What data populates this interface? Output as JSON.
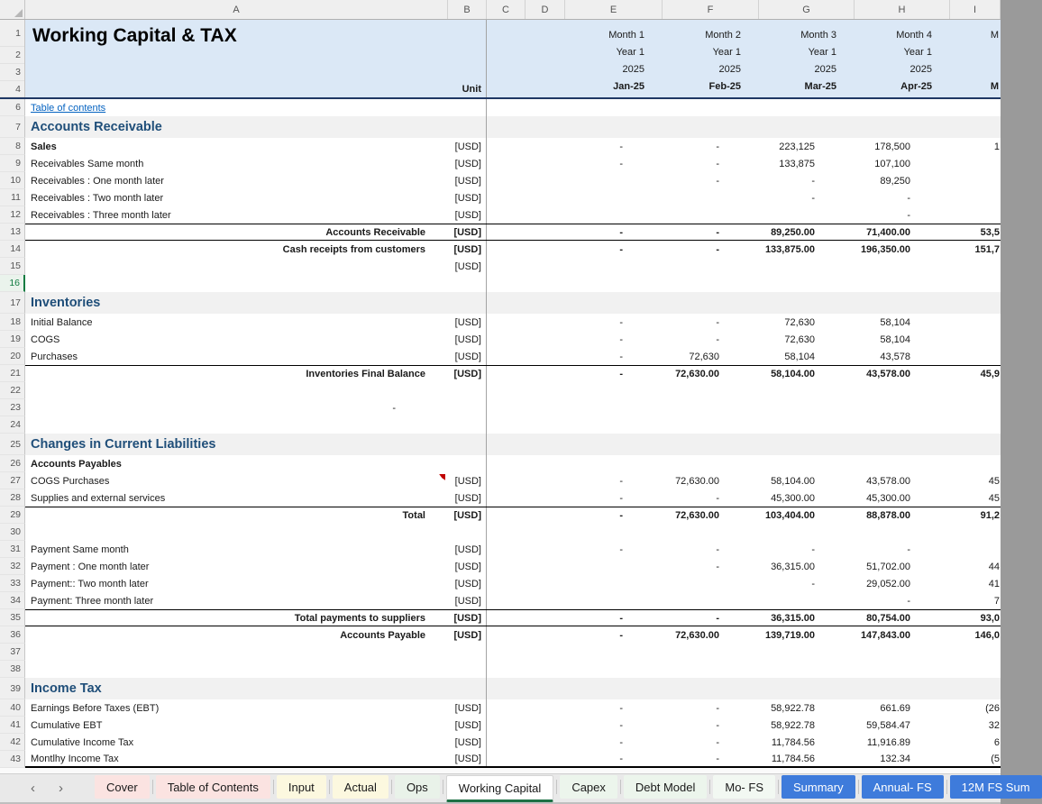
{
  "columns": [
    "A",
    "B",
    "C",
    "D",
    "E",
    "F",
    "G",
    "H",
    "I"
  ],
  "header": {
    "title": "Working Capital & TAX",
    "unit": "Unit",
    "months": [
      {
        "month": "Month 1",
        "year": "Year 1",
        "yr": "2025",
        "code": "Jan-25"
      },
      {
        "month": "Month 2",
        "year": "Year 1",
        "yr": "2025",
        "code": "Feb-25"
      },
      {
        "month": "Month 3",
        "year": "Year 1",
        "yr": "2025",
        "code": "Mar-25"
      },
      {
        "month": "Month 4",
        "year": "Year 1",
        "yr": "2025",
        "code": "Apr-25"
      },
      {
        "month": "M",
        "year": "",
        "yr": "",
        "code": "M"
      }
    ]
  },
  "rows": [
    {
      "n": "6",
      "k": "link",
      "l": "Table of contents"
    },
    {
      "n": "7",
      "k": "sec",
      "l": "Accounts Receivable"
    },
    {
      "n": "8",
      "k": "item",
      "l": "Sales",
      "lb": true,
      "u": "[USD]",
      "v": [
        "-",
        "-",
        "223,125",
        "178,500",
        "1"
      ]
    },
    {
      "n": "9",
      "k": "item",
      "l": "Receivables Same month",
      "u": "[USD]",
      "v": [
        "-",
        "-",
        "133,875",
        "107,100",
        ""
      ]
    },
    {
      "n": "10",
      "k": "item",
      "l": "Receivables : One month later",
      "u": "[USD]",
      "v": [
        "",
        "-",
        "-",
        "89,250",
        ""
      ]
    },
    {
      "n": "11",
      "k": "item",
      "l": "Receivables : Two month later",
      "u": "[USD]",
      "v": [
        "",
        "",
        "-",
        "-",
        ""
      ]
    },
    {
      "n": "12",
      "k": "item",
      "l": "Receivables : Three month later",
      "u": "[USD]",
      "v": [
        "",
        "",
        "",
        "-",
        ""
      ]
    },
    {
      "n": "13",
      "k": "tot",
      "l": "Accounts Receivable",
      "u": "[USD]",
      "v": [
        "-",
        "-",
        "89,250.00",
        "71,400.00",
        "53,5"
      ],
      "border": "tb"
    },
    {
      "n": "14",
      "k": "tot",
      "l": "Cash receipts from customers",
      "u": "[USD]",
      "v": [
        "-",
        "-",
        "133,875.00",
        "196,350.00",
        "151,7"
      ]
    },
    {
      "n": "15",
      "k": "unit",
      "u": "[USD]"
    },
    {
      "n": "16",
      "k": "blank",
      "sel": true
    },
    {
      "n": "17",
      "k": "sec",
      "l": "Inventories"
    },
    {
      "n": "18",
      "k": "item",
      "l": "Initial Balance",
      "u": "[USD]",
      "v": [
        "-",
        "-",
        "72,630",
        "58,104",
        ""
      ]
    },
    {
      "n": "19",
      "k": "item",
      "l": "COGS",
      "u": "[USD]",
      "v": [
        "-",
        "-",
        "72,630",
        "58,104",
        ""
      ]
    },
    {
      "n": "20",
      "k": "item",
      "l": "Purchases",
      "u": "[USD]",
      "v": [
        "-",
        "72,630",
        "58,104",
        "43,578",
        ""
      ]
    },
    {
      "n": "21",
      "k": "tot",
      "l": "Inventories Final Balance",
      "u": "[USD]",
      "v": [
        "-",
        "72,630.00",
        "58,104.00",
        "43,578.00",
        "45,9"
      ],
      "border": "t"
    },
    {
      "n": "22",
      "k": "blank"
    },
    {
      "n": "23",
      "k": "blank",
      "dashA": "-"
    },
    {
      "n": "24",
      "k": "blank"
    },
    {
      "n": "25",
      "k": "sec",
      "l": "Changes in Current Liabilities"
    },
    {
      "n": "26",
      "k": "item",
      "l": "Accounts Payables",
      "lb": true
    },
    {
      "n": "27",
      "k": "item",
      "l": "COGS Purchases",
      "u": "[USD]",
      "v": [
        "-",
        "72,630.00",
        "58,104.00",
        "43,578.00",
        "45"
      ],
      "note": true
    },
    {
      "n": "28",
      "k": "item",
      "l": "Supplies and external services",
      "u": "[USD]",
      "v": [
        "-",
        "-",
        "45,300.00",
        "45,300.00",
        "45"
      ]
    },
    {
      "n": "29",
      "k": "tot",
      "l": "Total",
      "u": "[USD]",
      "v": [
        "-",
        "72,630.00",
        "103,404.00",
        "88,878.00",
        "91,2"
      ],
      "border": "t"
    },
    {
      "n": "30",
      "k": "blank"
    },
    {
      "n": "31",
      "k": "item",
      "l": "Payment Same month",
      "u": "[USD]",
      "v": [
        "-",
        "-",
        "-",
        "-",
        ""
      ]
    },
    {
      "n": "32",
      "k": "item",
      "l": "Payment : One month later",
      "u": "[USD]",
      "v": [
        "",
        "-",
        "36,315.00",
        "51,702.00",
        "44"
      ]
    },
    {
      "n": "33",
      "k": "item",
      "l": "Payment:: Two month later",
      "u": "[USD]",
      "v": [
        "",
        "",
        "-",
        "29,052.00",
        "41"
      ]
    },
    {
      "n": "34",
      "k": "item",
      "l": "Payment: Three month later",
      "u": "[USD]",
      "v": [
        "",
        "",
        "",
        "-",
        "7"
      ]
    },
    {
      "n": "35",
      "k": "tot",
      "l": "Total payments to suppliers",
      "u": "[USD]",
      "v": [
        "-",
        "-",
        "36,315.00",
        "80,754.00",
        "93,0"
      ],
      "border": "tb"
    },
    {
      "n": "36",
      "k": "tot",
      "l": "Accounts Payable",
      "u": "[USD]",
      "v": [
        "-",
        "72,630.00",
        "139,719.00",
        "147,843.00",
        "146,0"
      ]
    },
    {
      "n": "37",
      "k": "blank"
    },
    {
      "n": "38",
      "k": "blank"
    },
    {
      "n": "39",
      "k": "sec",
      "l": "Income Tax"
    },
    {
      "n": "40",
      "k": "item",
      "l": "Earnings Before Taxes (EBT)",
      "u": "[USD]",
      "v": [
        "-",
        "-",
        "58,922.78",
        "661.69",
        "(26"
      ]
    },
    {
      "n": "41",
      "k": "item",
      "l": "Cumulative EBT",
      "u": "[USD]",
      "v": [
        "-",
        "-",
        "58,922.78",
        "59,584.47",
        "32"
      ]
    },
    {
      "n": "42",
      "k": "item",
      "l": "Cumulative Income Tax",
      "u": "[USD]",
      "v": [
        "-",
        "-",
        "11,784.56",
        "11,916.89",
        "6"
      ]
    },
    {
      "n": "43",
      "k": "item",
      "l": "Montlhy Income Tax",
      "u": "[USD]",
      "v": [
        "-",
        "-",
        "11,784.56",
        "132.34",
        "(5"
      ],
      "border": "b2"
    }
  ],
  "tab_bar": {
    "left_icon": "‹",
    "right_icon": "›",
    "tabs": [
      {
        "label": "Cover",
        "bg": "#FBE3E1",
        "fg": "#1a1a1a"
      },
      {
        "label": "Table of Contents",
        "bg": "#FBE3E1",
        "fg": "#1a1a1a"
      },
      {
        "label": "Input",
        "bg": "#FCF8DF",
        "fg": "#1a1a1a"
      },
      {
        "label": "Actual",
        "bg": "#FCF8DF",
        "fg": "#1a1a1a"
      },
      {
        "label": "Ops",
        "bg": "#E9F2E9",
        "fg": "#1a1a1a"
      },
      {
        "label": "Working Capital",
        "bg": "#FFFFFF",
        "fg": "#1a1a1a",
        "active": true
      },
      {
        "label": "Capex",
        "bg": "#ECF5EC",
        "fg": "#1a1a1a"
      },
      {
        "label": "Debt Model",
        "bg": "#ECF5EC",
        "fg": "#1a1a1a"
      },
      {
        "label": "Mo- FS",
        "bg": "#F2F8F2",
        "fg": "#1a1a1a"
      },
      {
        "label": "Summary",
        "bg": "#3E7BDB",
        "fg": "#ffffff"
      },
      {
        "label": "Annual- FS",
        "bg": "#3E7BDB",
        "fg": "#ffffff"
      },
      {
        "label": "12M FS Sum",
        "bg": "#3E7BDB",
        "fg": "#ffffff"
      }
    ]
  },
  "colors": {
    "accent_green": "#107C41",
    "tab_blue": "#3E7BDB",
    "section_text": "#1F4E79",
    "header_fill": "#DBE8F6",
    "note_red": "#C00000",
    "link_blue": "#0563C1"
  }
}
